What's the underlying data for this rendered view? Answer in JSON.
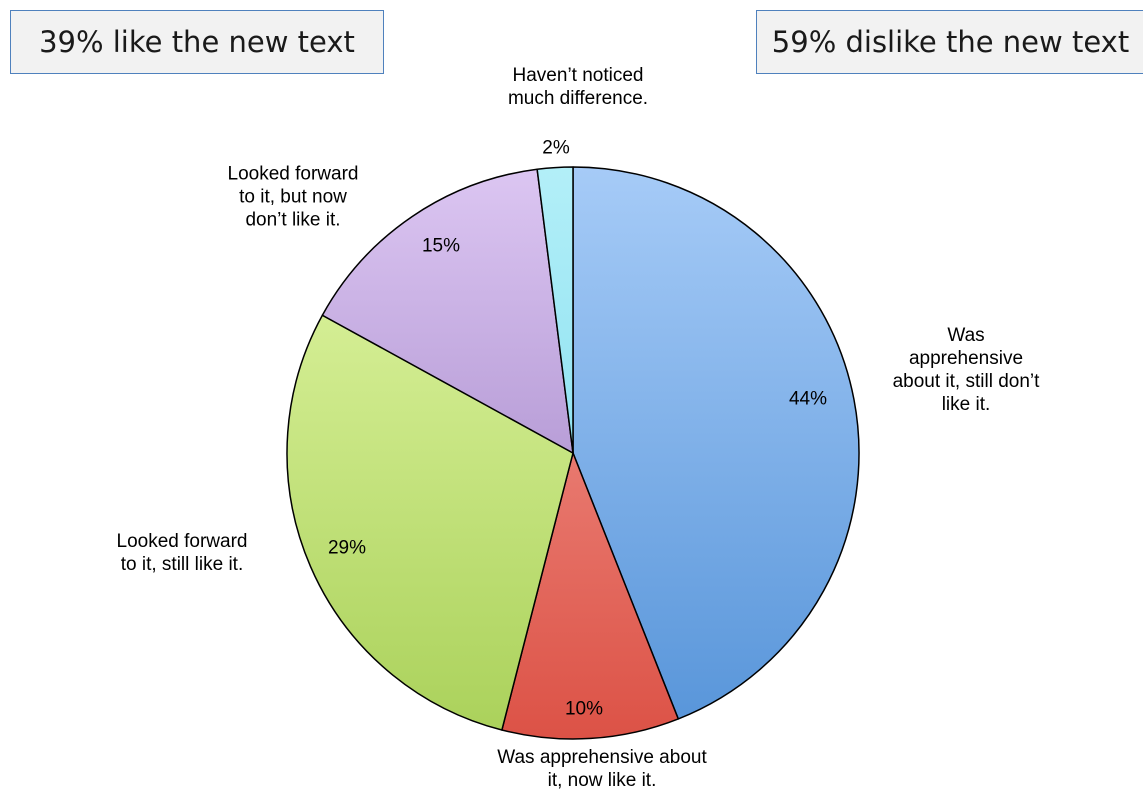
{
  "callouts": {
    "left": "39% like the new text",
    "right": "59% dislike the new text"
  },
  "chart_data": {
    "type": "pie",
    "start_angle_deg": 0,
    "direction": "clockwise",
    "slices": [
      {
        "label_lines": [
          "Was",
          "apprehensive",
          "about it, still don’t",
          "like it."
        ],
        "value": 44,
        "pct_label": "44%",
        "color_top": "#a6cbf7",
        "color_bottom": "#5694d9"
      },
      {
        "label_lines": [
          "Was apprehensive about",
          "it, now like it."
        ],
        "value": 10,
        "pct_label": "10%",
        "color_top": "#f5a199",
        "color_bottom": "#dc5246"
      },
      {
        "label_lines": [
          "Looked forward",
          "to it, still like it."
        ],
        "value": 29,
        "pct_label": "29%",
        "color_top": "#e3f8a8",
        "color_bottom": "#aad15a"
      },
      {
        "label_lines": [
          "Looked forward",
          "to it, but now",
          "don’t like it."
        ],
        "value": 15,
        "pct_label": "15%",
        "color_top": "#dcc6f2",
        "color_bottom": "#9576bd"
      },
      {
        "label_lines": [
          "Haven’t noticed",
          "much difference."
        ],
        "value": 2,
        "pct_label": "2%",
        "color_top": "#b3eff8",
        "color_bottom": "#6fd6eb"
      }
    ]
  }
}
